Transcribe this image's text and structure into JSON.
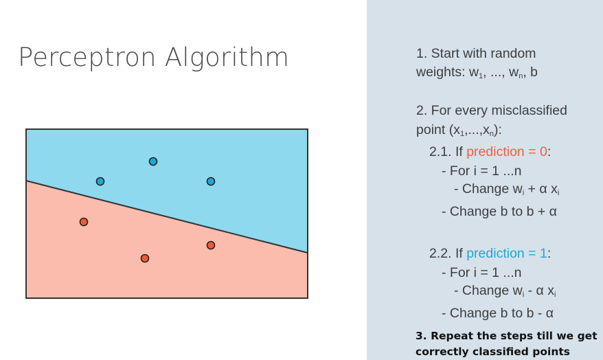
{
  "title": "Perceptron Algorithm",
  "colors": {
    "region_above": "#8fd9ef",
    "region_below": "#fbbcad",
    "point_blue": "#1fa8d6",
    "point_red": "#ee5a3a",
    "highlight_red": "#f0603c",
    "highlight_blue": "#1fa8d6",
    "panel_bg": "#d6e1ea"
  },
  "steps": {
    "s1_a": "1. Start with random",
    "s1_b_pre": "weights: w",
    "s1_b_sub1": "1",
    "s1_b_mid": ", ..., w",
    "s1_b_subn": "n",
    "s1_b_post": ", b",
    "s2_a": "2. For every misclassified",
    "s2_b_pre": "point (x",
    "s2_b_sub1": "1",
    "s2_b_mid": ",...,x",
    "s2_b_subn": "n",
    "s2_b_post": "):",
    "s21_pre": "2.1. If ",
    "s21_hl": "prediction = 0",
    "s21_post": ":",
    "s21_for": "- For i = 1 ...n",
    "s21_change_w_pre": "- Change w",
    "s21_change_w_sub": "i",
    "s21_change_w_post": " + α x",
    "s21_change_w_sub2": "i",
    "s21_change_b": "- Change b to b + α",
    "s22_pre": "2.2. If ",
    "s22_hl": "prediction = 1",
    "s22_post": ":",
    "s22_for": "- For i = 1 ...n",
    "s22_change_w_pre": "- Change w",
    "s22_change_w_sub": "i",
    "s22_change_w_post": " - α x",
    "s22_change_w_sub2": "i",
    "s22_change_b": "- Change b to b - α",
    "s3_a": "3. Repeat the steps till we get",
    "s3_b": "correctly classified points"
  }
}
